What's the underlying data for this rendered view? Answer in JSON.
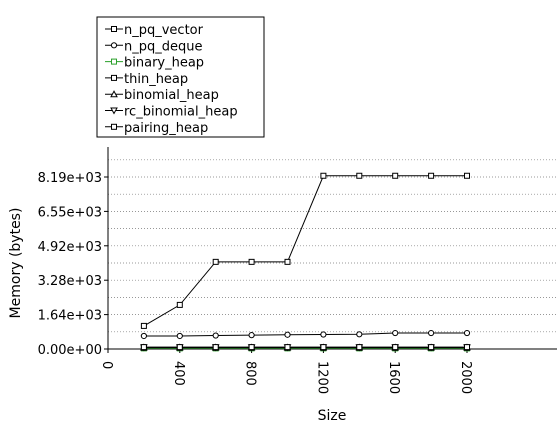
{
  "chart_data": {
    "type": "line",
    "title": "",
    "xlabel": "Size",
    "ylabel": "Memory (bytes)",
    "xlim": [
      0,
      2000
    ],
    "ylim": [
      0,
      10000
    ],
    "x_ticks": [
      "0",
      "400",
      "800",
      "1200",
      "1600",
      "2000"
    ],
    "x_tick_values": [
      0,
      400,
      800,
      1200,
      1600,
      2000
    ],
    "y_ticks": [
      "0.00e+00",
      "1.64e+03",
      "3.28e+03",
      "4.92e+03",
      "6.55e+03",
      "8.19e+03"
    ],
    "y_tick_values": [
      0,
      1638,
      3276,
      4915,
      6553,
      8191
    ],
    "grid": "horizontal dotted",
    "legend_position": "top-left above plot",
    "x": [
      200,
      400,
      600,
      800,
      1000,
      1200,
      1400,
      1600,
      1800,
      2000
    ],
    "series": [
      {
        "name": "n_pq_vector",
        "marker": "square",
        "color": "#000000",
        "values": [
          1100,
          2100,
          4150,
          4150,
          4150,
          8250,
          8250,
          8250,
          8250,
          8250
        ]
      },
      {
        "name": "n_pq_deque",
        "marker": "circle",
        "color": "#000000",
        "values": [
          620,
          620,
          640,
          660,
          680,
          690,
          700,
          760,
          760,
          760
        ]
      },
      {
        "name": "binary_heap",
        "marker": "square",
        "color": "#2aa02a",
        "values": [
          30,
          30,
          30,
          30,
          30,
          30,
          30,
          30,
          30,
          30
        ]
      },
      {
        "name": "thin_heap",
        "marker": "square",
        "color": "#000000",
        "values": [
          60,
          60,
          60,
          60,
          60,
          60,
          60,
          60,
          60,
          60
        ]
      },
      {
        "name": "binomial_heap",
        "marker": "triangle-up",
        "color": "#000000",
        "values": [
          70,
          70,
          70,
          70,
          70,
          70,
          70,
          70,
          70,
          70
        ]
      },
      {
        "name": "rc_binomial_heap",
        "marker": "triangle-down",
        "color": "#000000",
        "values": [
          80,
          80,
          80,
          80,
          80,
          80,
          80,
          80,
          80,
          80
        ]
      },
      {
        "name": "pairing_heap",
        "marker": "square",
        "color": "#000000",
        "values": [
          90,
          90,
          90,
          90,
          90,
          90,
          90,
          90,
          90,
          90
        ]
      }
    ]
  }
}
